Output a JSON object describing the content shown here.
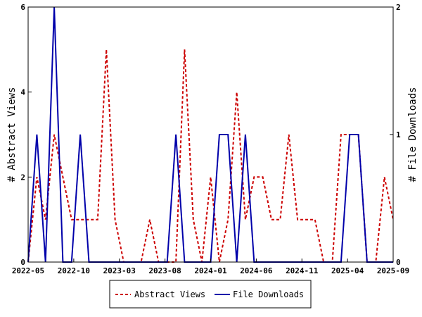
{
  "chart_data": {
    "type": "line",
    "x_tick_labels": [
      "2022-05",
      "2022-10",
      "2023-03",
      "2023-08",
      "2024-01",
      "2024-06",
      "2024-11",
      "2025-04",
      "2025-09"
    ],
    "ylabel_left": "# Abstract Views",
    "ylabel_right": "# File Downloads",
    "ylim_left": [
      0,
      6
    ],
    "ylim_right": [
      0,
      2
    ],
    "y_ticks_left": [
      "0",
      "2",
      "4",
      "6"
    ],
    "y_ticks_right": [
      "0",
      "1",
      "2"
    ],
    "legend_position": "bottom-center",
    "series": [
      {
        "name": "Abstract Views",
        "axis": "left",
        "color": "#cc0000",
        "style": "dashed",
        "values": [
          0,
          2,
          1,
          3,
          2,
          1,
          1,
          1,
          1,
          5,
          1,
          0,
          0,
          0,
          1,
          0,
          0,
          0,
          5,
          1,
          0,
          2,
          0,
          1,
          4,
          1,
          2,
          2,
          1,
          1,
          3,
          1,
          1,
          1,
          0,
          0,
          3,
          3,
          3,
          0,
          0,
          2,
          1
        ]
      },
      {
        "name": "File Downloads",
        "axis": "right",
        "color": "#0000aa",
        "style": "solid",
        "values": [
          0,
          1,
          0,
          2,
          0,
          0,
          1,
          0,
          0,
          0,
          0,
          0,
          0,
          0,
          0,
          0,
          0,
          1,
          0,
          0,
          0,
          0,
          1,
          1,
          0,
          1,
          0,
          0,
          0,
          0,
          0,
          0,
          0,
          0,
          0,
          0,
          0,
          1,
          1,
          0,
          0,
          0,
          0
        ]
      }
    ]
  }
}
